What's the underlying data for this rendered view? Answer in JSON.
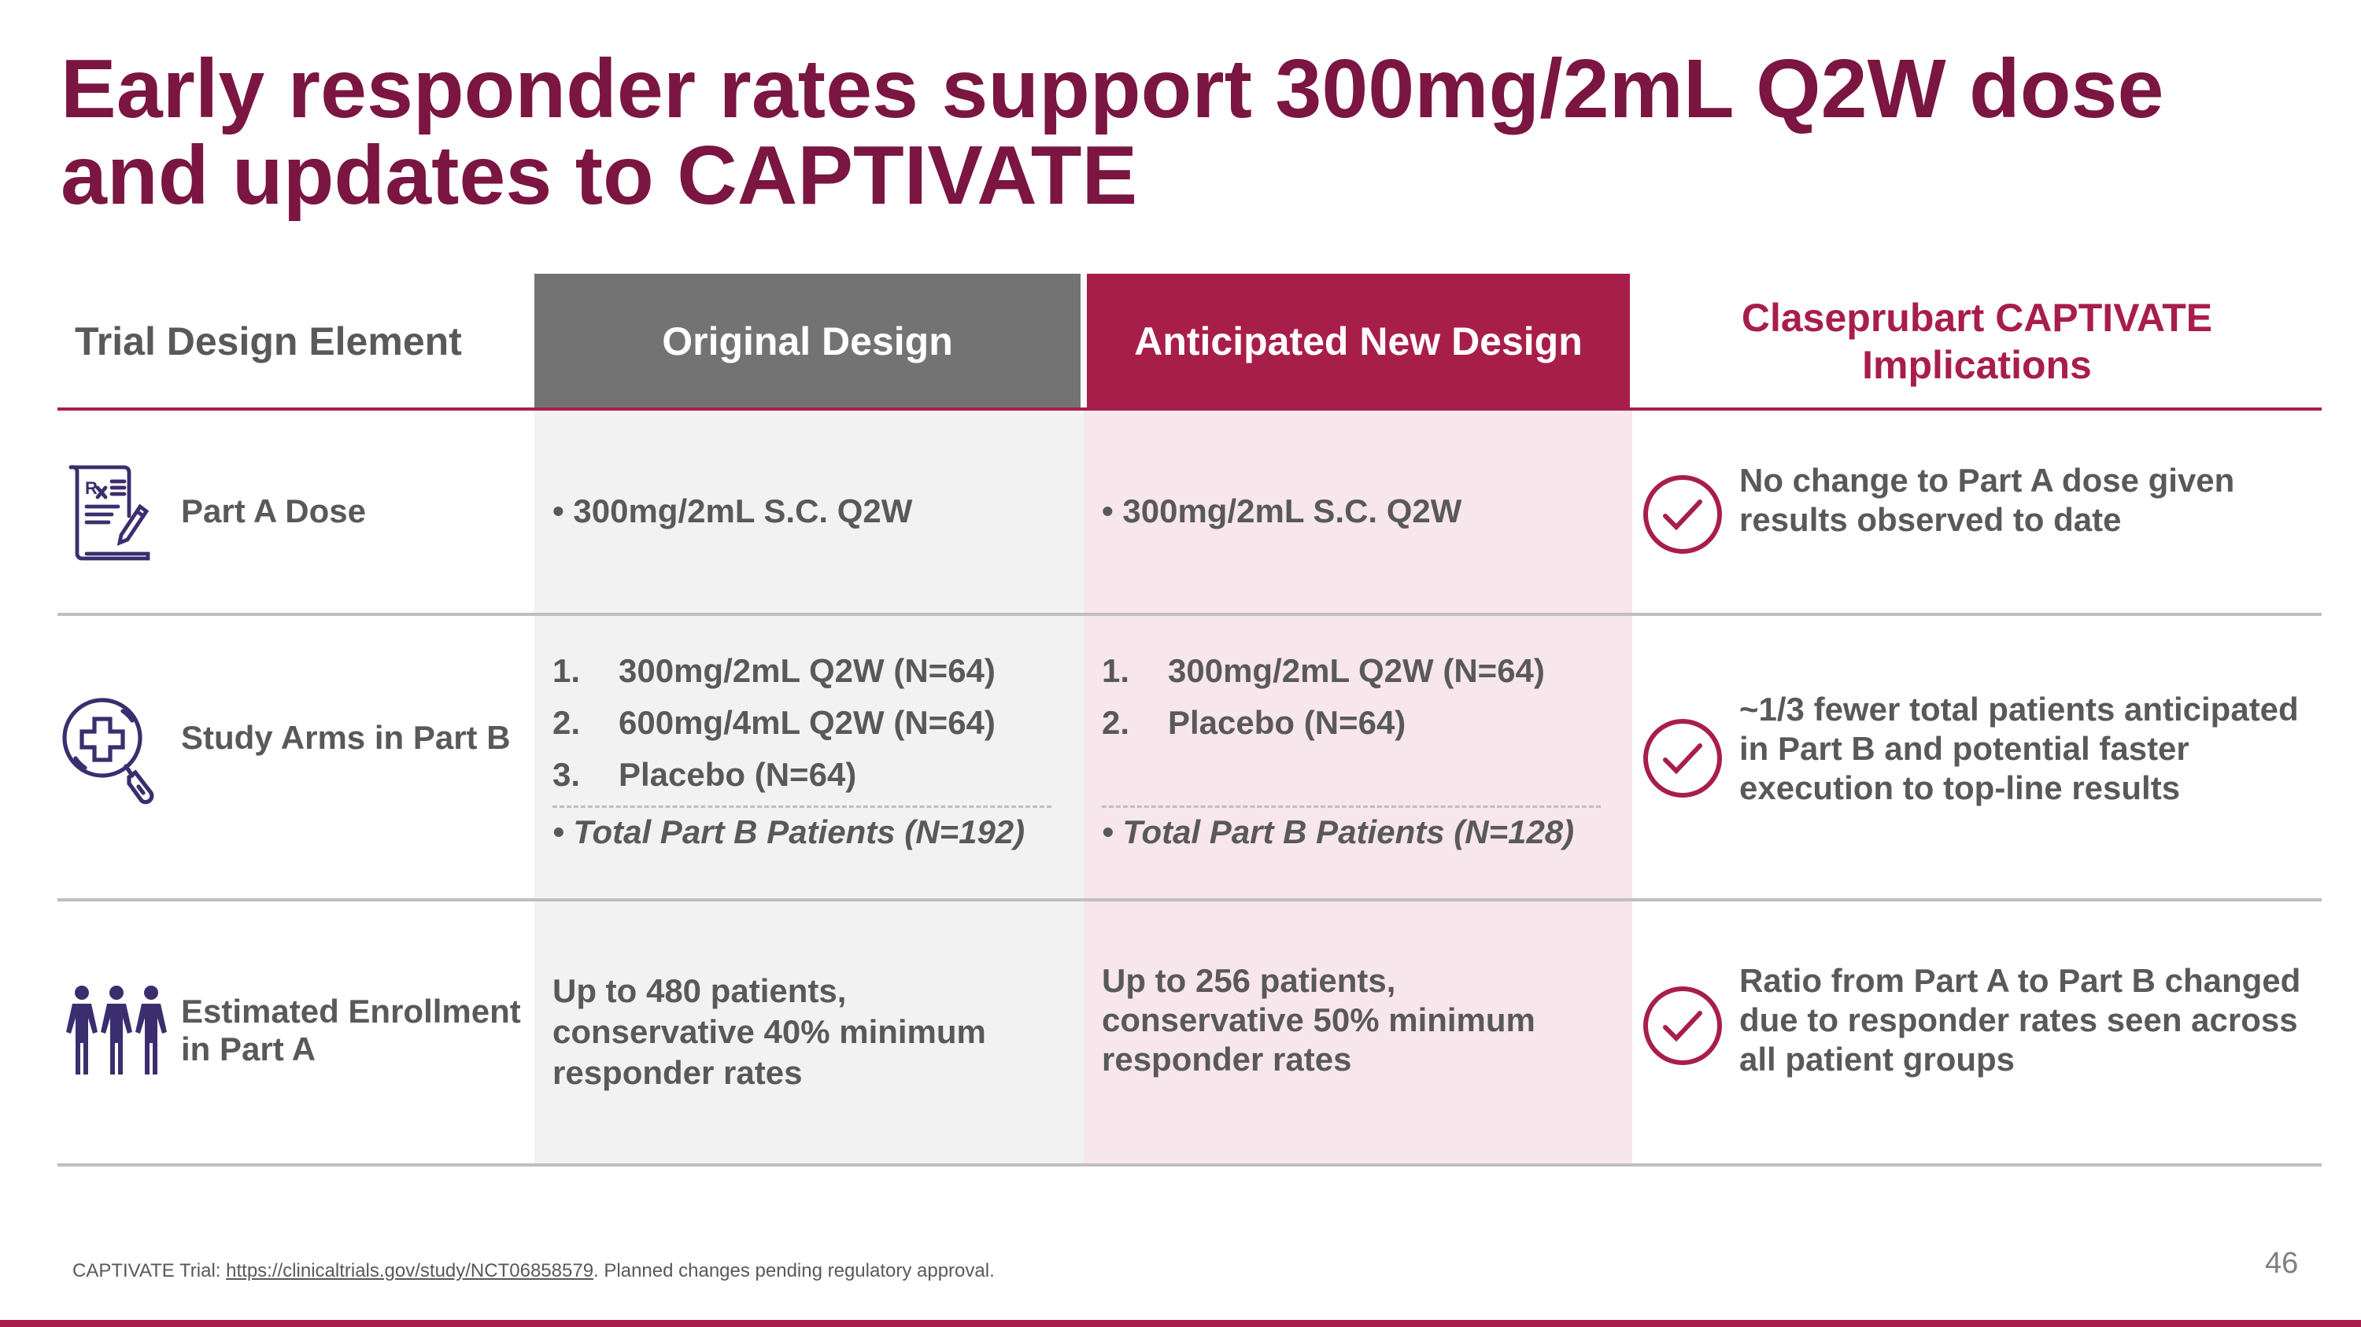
{
  "title": "Early responder rates support 300mg/2mL Q2W dose and updates to CAPTIVATE",
  "header": {
    "col1": "Trial Design Element",
    "col2": "Original Design",
    "col3": "Anticipated New Design",
    "col4": "Claseprubart CAPTIVATE Implications"
  },
  "colors": {
    "title": "#7b1541",
    "maroon": "#a81e4a",
    "gray_header": "#737373",
    "pink_bg": "#f7e6eb",
    "gray_bg": "#f2f2f2",
    "icon": "#3b2e6e"
  },
  "rows": [
    {
      "label": "Part A Dose",
      "icon": "prescription-icon",
      "original": "• 300mg/2mL S.C. Q2W",
      "new": "• 300mg/2mL S.C. Q2W",
      "implication": "No change to Part A dose given results observed to date"
    },
    {
      "label": "Study Arms in Part B",
      "icon": "magnifier-medical-cross-icon",
      "original": {
        "items": [
          {
            "n": "1.",
            "t": "300mg/2mL Q2W (N=64)"
          },
          {
            "n": "2.",
            "t": "600mg/4mL Q2W  (N=64)"
          },
          {
            "n": "3.",
            "t": "Placebo (N=64)"
          }
        ],
        "total": "• Total Part B Patients (N=192)"
      },
      "new": {
        "items": [
          {
            "n": "1.",
            "t": "300mg/2mL Q2W (N=64)"
          },
          {
            "n": "2.",
            "t": "Placebo (N=64)"
          }
        ],
        "total": "• Total Part B Patients (N=128)"
      },
      "implication": "~1/3 fewer total patients anticipated in Part B and potential faster execution to top-line results"
    },
    {
      "label": "Estimated Enrollment in Part A",
      "icon": "people-group-icon",
      "original": "Up to 480 patients, conservative 40% minimum responder rates",
      "new": "Up to 256 patients, conservative 50% minimum responder rates",
      "implication": "Ratio from Part A to Part B changed due to responder rates seen across all patient groups"
    }
  ],
  "footnote": {
    "prefix": "CAPTIVATE Trial: ",
    "link": "https://clinicaltrials.gov/study/NCT06858579",
    "suffix": ". Planned changes pending regulatory approval."
  },
  "page_number": "46"
}
